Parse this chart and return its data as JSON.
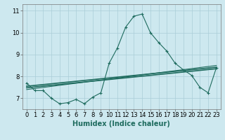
{
  "xlabel": "Humidex (Indice chaleur)",
  "background_color": "#cde8ef",
  "line_color": "#1e6b5e",
  "grid_color": "#aacdd8",
  "xlim": [
    -0.5,
    23.5
  ],
  "ylim": [
    6.5,
    11.3
  ],
  "yticks": [
    7,
    8,
    9,
    10,
    11
  ],
  "xticks": [
    0,
    1,
    2,
    3,
    4,
    5,
    6,
    7,
    8,
    9,
    10,
    11,
    12,
    13,
    14,
    15,
    16,
    17,
    18,
    19,
    20,
    21,
    22,
    23
  ],
  "main_line_x": [
    0,
    1,
    2,
    3,
    4,
    5,
    6,
    7,
    8,
    9,
    10,
    11,
    12,
    13,
    14,
    15,
    16,
    17,
    18,
    19,
    20,
    21,
    22,
    23
  ],
  "main_line_y": [
    7.7,
    7.35,
    7.35,
    7.0,
    6.75,
    6.8,
    6.95,
    6.75,
    7.05,
    7.25,
    8.6,
    9.3,
    10.25,
    10.75,
    10.85,
    10.0,
    9.55,
    9.15,
    8.6,
    8.3,
    8.05,
    7.5,
    7.25,
    8.4
  ],
  "reg_line1_x": [
    0,
    23
  ],
  "reg_line1_y": [
    7.55,
    8.42
  ],
  "reg_line2_x": [
    0,
    23
  ],
  "reg_line2_y": [
    7.48,
    8.35
  ],
  "reg_line3_x": [
    0,
    23
  ],
  "reg_line3_y": [
    7.4,
    8.5
  ],
  "xlabel_fontsize": 7,
  "tick_fontsize": 6,
  "marker": "+",
  "markersize": 3.5,
  "linewidth": 0.8
}
